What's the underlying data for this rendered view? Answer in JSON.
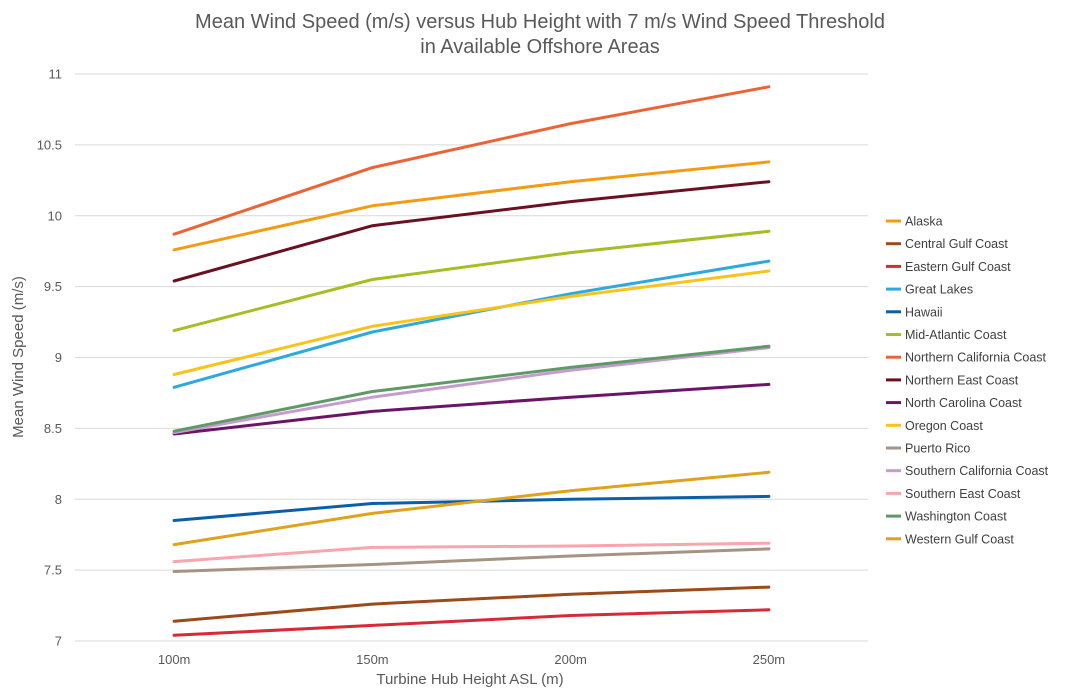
{
  "chart_data": {
    "type": "line",
    "title_line1": "Mean Wind Speed (m/s) versus Hub Height with 7 m/s Wind Speed Threshold",
    "title_line2": "in Available Offshore Areas",
    "xlabel": "Turbine Hub Height ASL (m)",
    "ylabel": "Mean Wind Speed (m/s)",
    "categories": [
      "100m",
      "150m",
      "200m",
      "250m"
    ],
    "ylim": [
      7,
      11
    ],
    "yticks": [
      "7",
      "7.5",
      "8",
      "8.5",
      "9",
      "9.5",
      "10",
      "10.5",
      "11"
    ],
    "grid": true,
    "legend_position": "right",
    "series": [
      {
        "name": "Alaska",
        "color": "#f39c12",
        "values": [
          9.76,
          10.07,
          10.24,
          10.38
        ]
      },
      {
        "name": "Central Gulf Coast",
        "color": "#9c4a1a",
        "values": [
          7.14,
          7.26,
          7.33,
          7.38
        ]
      },
      {
        "name": "Eastern Gulf Coast",
        "color": "#d62a36",
        "values": [
          7.04,
          7.11,
          7.18,
          7.22
        ]
      },
      {
        "name": "Great Lakes",
        "color": "#2ea9df",
        "values": [
          8.79,
          9.18,
          9.45,
          9.68
        ]
      },
      {
        "name": "Hawaii",
        "color": "#0b5ea8",
        "values": [
          7.85,
          7.97,
          8.0,
          8.02
        ]
      },
      {
        "name": "Mid-Atlantic Coast",
        "color": "#a6bd23",
        "values": [
          9.19,
          9.55,
          9.74,
          9.89
        ]
      },
      {
        "name": "Northern California Coast",
        "color": "#ec6335",
        "values": [
          9.87,
          10.34,
          10.65,
          10.91
        ]
      },
      {
        "name": "Northern East Coast",
        "color": "#6b1020",
        "values": [
          9.54,
          9.93,
          10.1,
          10.24
        ]
      },
      {
        "name": "North Carolina Coast",
        "color": "#6c1466",
        "values": [
          8.46,
          8.62,
          8.72,
          8.81
        ]
      },
      {
        "name": "Oregon Coast",
        "color": "#f9c31a",
        "values": [
          8.88,
          9.22,
          9.43,
          9.61
        ]
      },
      {
        "name": "Puerto Rico",
        "color": "#a59482",
        "values": [
          7.49,
          7.54,
          7.6,
          7.65
        ]
      },
      {
        "name": "Southern California Coast",
        "color": "#c59bd0",
        "values": [
          8.47,
          8.72,
          8.91,
          9.07
        ]
      },
      {
        "name": "Southern East Coast",
        "color": "#f8a5ad",
        "values": [
          7.56,
          7.66,
          7.67,
          7.69
        ]
      },
      {
        "name": "Washington Coast",
        "color": "#5f9a66",
        "values": [
          8.48,
          8.76,
          8.93,
          9.08
        ]
      },
      {
        "name": "Western Gulf Coast",
        "color": "#e0a21a",
        "values": [
          7.68,
          7.9,
          8.06,
          8.19
        ]
      }
    ]
  }
}
